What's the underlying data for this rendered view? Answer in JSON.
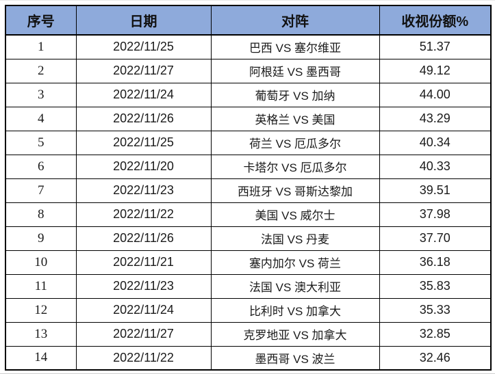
{
  "chart_data": {
    "type": "table",
    "columns": [
      {
        "key": "index",
        "label": "序号"
      },
      {
        "key": "date",
        "label": "日期"
      },
      {
        "key": "match",
        "label": "对阵"
      },
      {
        "key": "share",
        "label": "收视份额%"
      }
    ],
    "rows": [
      [
        "1",
        "2022/11/25",
        "巴西 VS 塞尔维亚",
        "51.37"
      ],
      [
        "2",
        "2022/11/27",
        "阿根廷 VS 墨西哥",
        "49.12"
      ],
      [
        "3",
        "2022/11/24",
        "葡萄牙 VS 加纳",
        "44.00"
      ],
      [
        "4",
        "2022/11/26",
        "英格兰 VS 美国",
        "43.29"
      ],
      [
        "5",
        "2022/11/25",
        "荷兰 VS 厄瓜多尔",
        "40.34"
      ],
      [
        "6",
        "2022/11/20",
        "卡塔尔 VS 厄瓜多尔",
        "40.33"
      ],
      [
        "7",
        "2022/11/23",
        "西班牙 VS 哥斯达黎加",
        "39.51"
      ],
      [
        "8",
        "2022/11/22",
        "美国 VS 威尔士",
        "37.98"
      ],
      [
        "9",
        "2022/11/26",
        "法国 VS 丹麦",
        "37.70"
      ],
      [
        "10",
        "2022/11/21",
        "塞内加尔 VS 荷兰",
        "36.18"
      ],
      [
        "11",
        "2022/11/23",
        "法国 VS 澳大利亚",
        "35.83"
      ],
      [
        "12",
        "2022/11/24",
        "比利时 VS 加拿大",
        "35.33"
      ],
      [
        "13",
        "2022/11/27",
        "克罗地亚 VS 加拿大",
        "32.85"
      ],
      [
        "14",
        "2022/11/22",
        "墨西哥 VS 波兰",
        "32.46"
      ]
    ],
    "colors": {
      "header_bg": "#8EAADB",
      "header_text": "#111111",
      "border": "#000000",
      "row_bg": "#FFFFFF",
      "cell_text": "#1A1A1A"
    }
  }
}
